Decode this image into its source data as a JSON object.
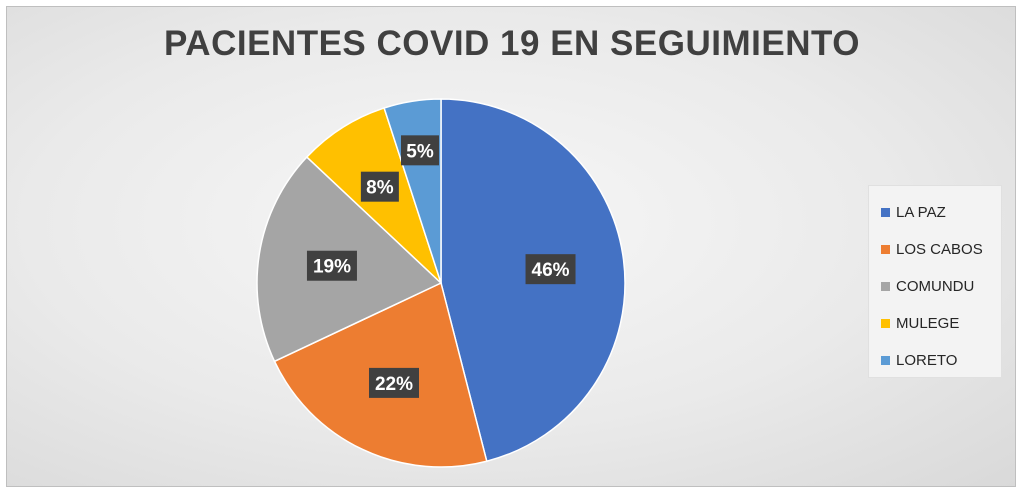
{
  "chart_data": {
    "type": "pie",
    "title": "PACIENTES COVID 19 EN SEGUIMIENTO",
    "categories": [
      "LA PAZ",
      "LOS CABOS",
      "COMUNDU",
      "MULEGE",
      "LORETO"
    ],
    "values": [
      46,
      22,
      19,
      8,
      5
    ],
    "labels": [
      "46%",
      "22%",
      "19%",
      "8%",
      "5%"
    ],
    "colors": [
      "#4472C4",
      "#ED7D31",
      "#A5A5A5",
      "#FFC000",
      "#5B9BD5"
    ],
    "legend_placement": "right"
  }
}
